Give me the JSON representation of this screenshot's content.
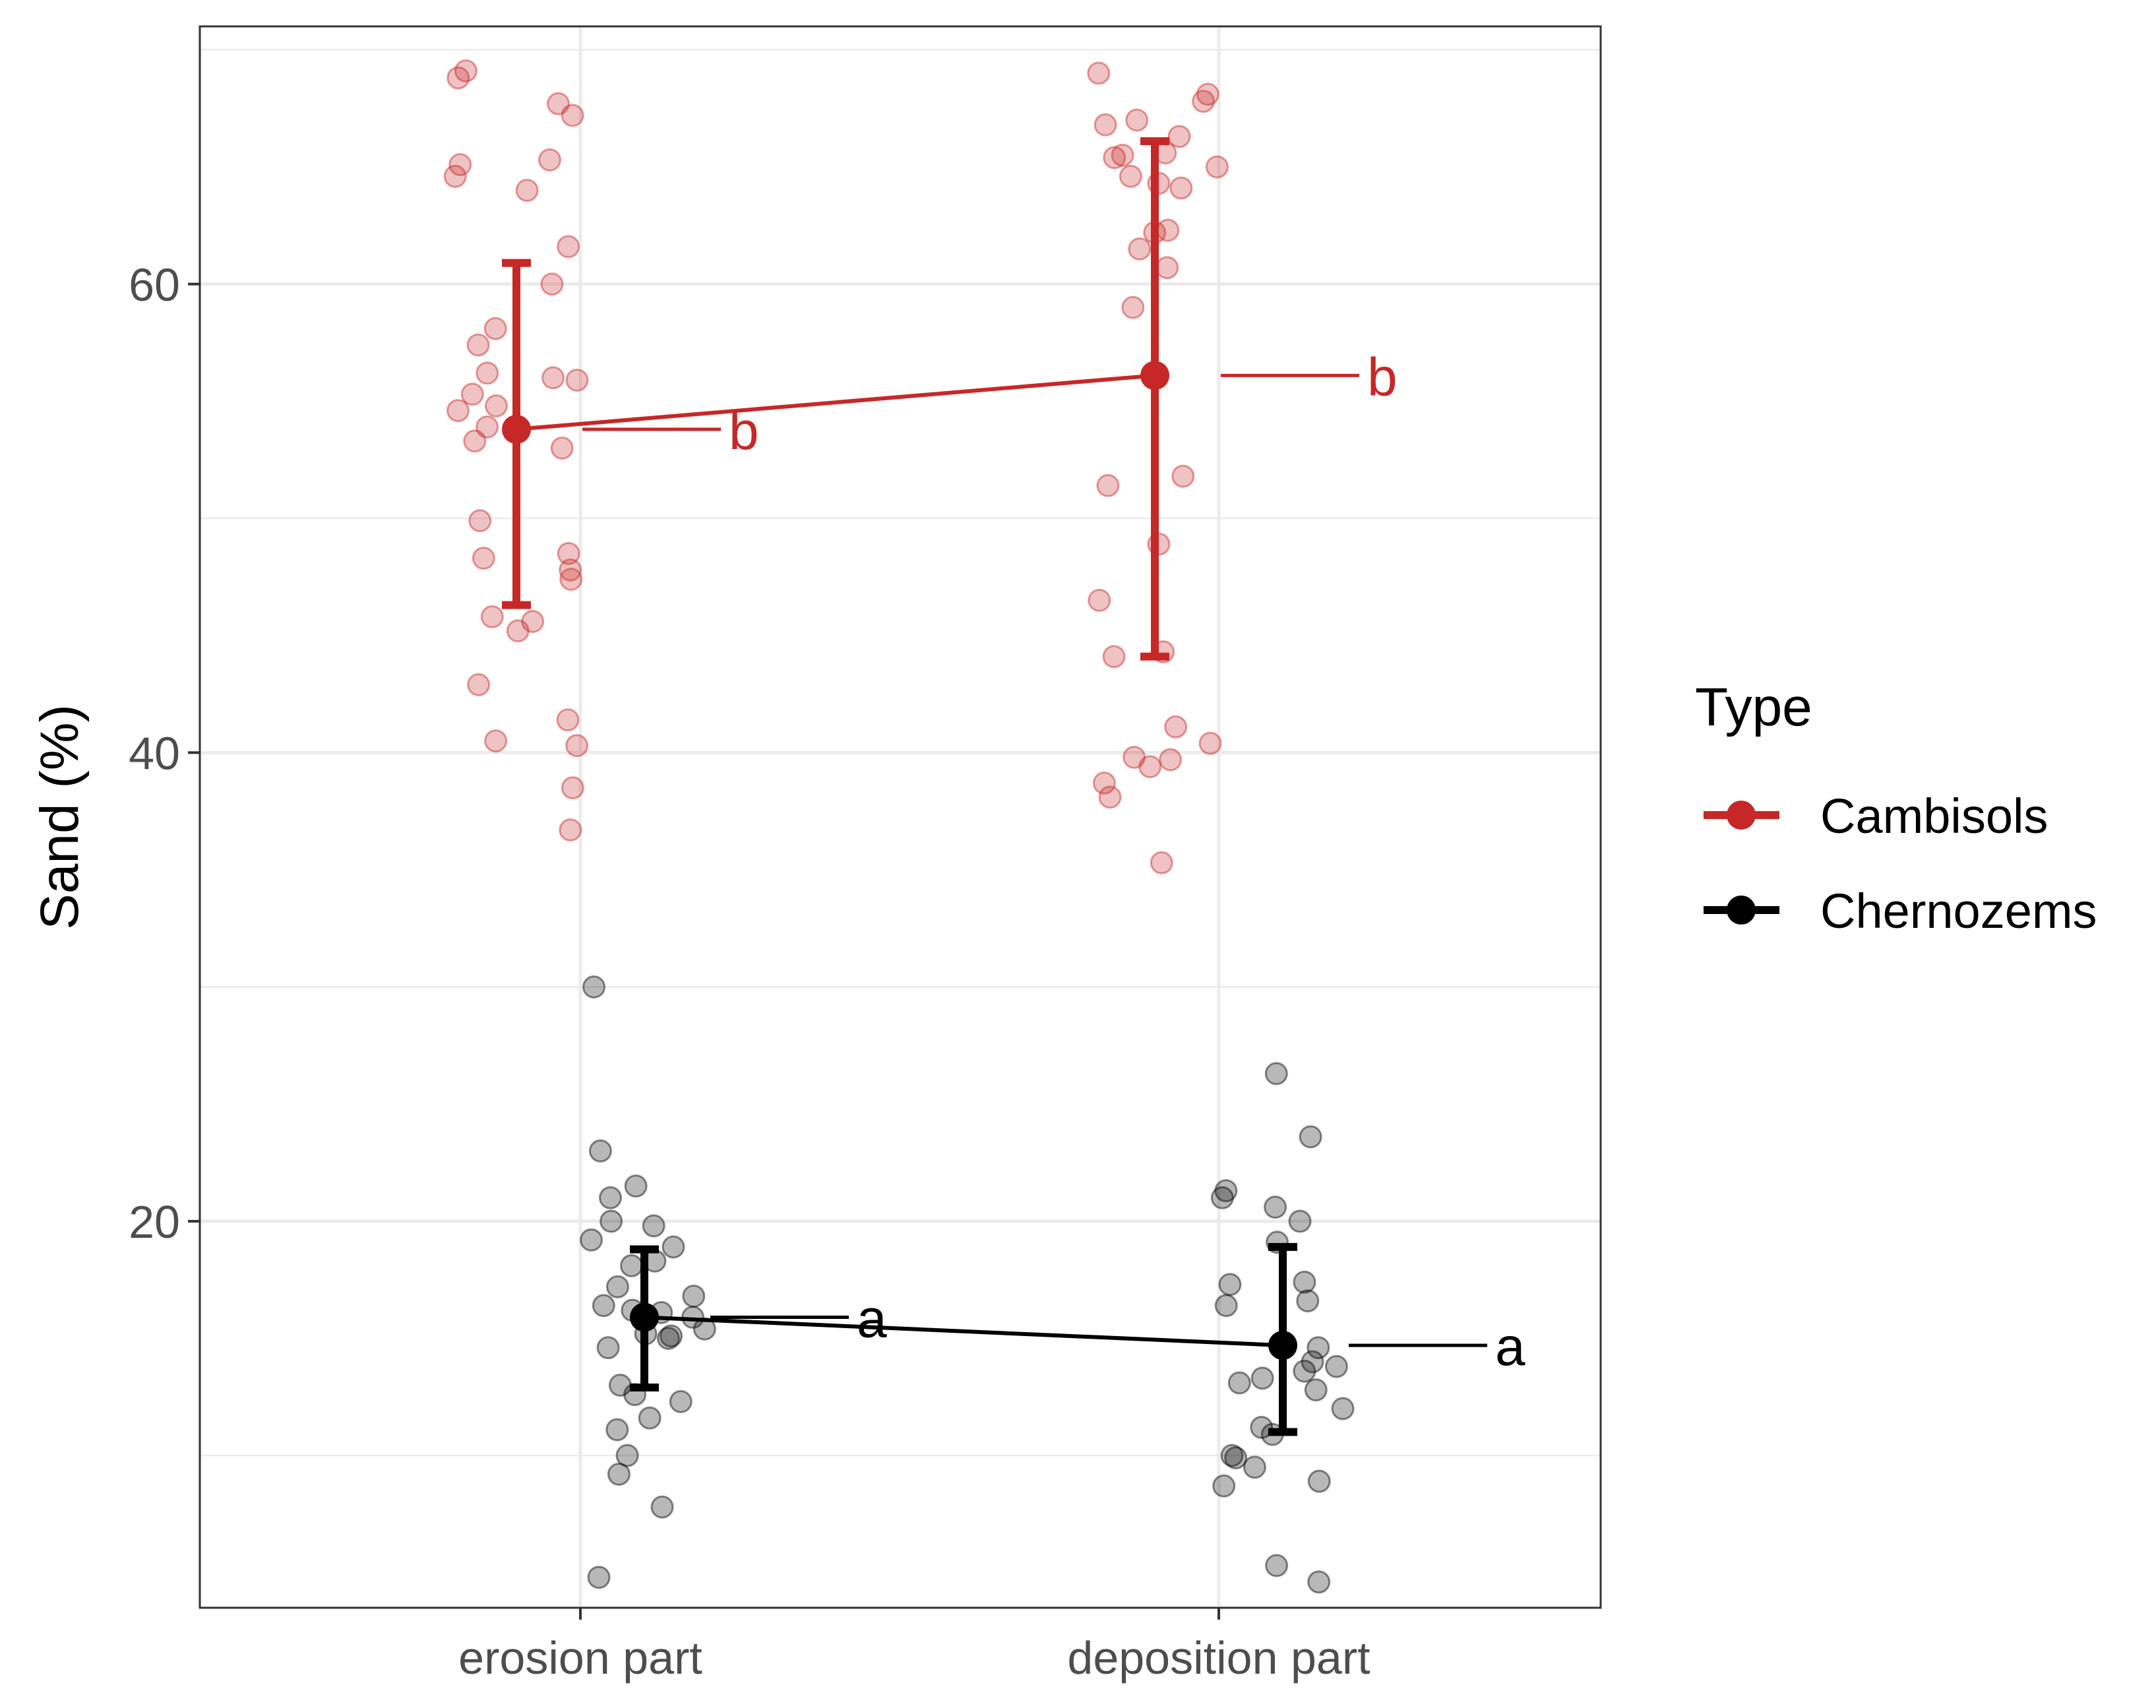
{
  "chart_data": {
    "type": "scatter",
    "title": "",
    "xlabel": "",
    "ylabel": "Sand (%)",
    "categories": [
      "erosion part",
      "deposition part"
    ],
    "ylim": [
      3.5,
      71
    ],
    "y_ticks": [
      20,
      40,
      60
    ],
    "grid": true,
    "legend": {
      "title": "Type",
      "position": "right"
    },
    "colors": {
      "Cambisols": "#c62828",
      "Chernozems": "#000000"
    },
    "series": [
      {
        "name": "Cambisols",
        "color": "#c62828",
        "means": [
          53.8,
          56.1
        ],
        "ci_low": [
          46.3,
          44.1
        ],
        "ci_high": [
          60.9,
          66.1
        ],
        "letters": [
          "b",
          "b"
        ],
        "points": [
          [
            0,
            69.1
          ],
          [
            0,
            67.7
          ],
          [
            0,
            67.2
          ],
          [
            0,
            68.8
          ],
          [
            0,
            64.6
          ],
          [
            0,
            65.1
          ],
          [
            0,
            65.3
          ],
          [
            0,
            64.0
          ],
          [
            0,
            61.6
          ],
          [
            0,
            60.0
          ],
          [
            0,
            58.1
          ],
          [
            0,
            57.4
          ],
          [
            0,
            56.2
          ],
          [
            0,
            56.0
          ],
          [
            0,
            55.9
          ],
          [
            0,
            55.3
          ],
          [
            0,
            54.8
          ],
          [
            0,
            54.6
          ],
          [
            0,
            53.9
          ],
          [
            0,
            53.3
          ],
          [
            0,
            53.0
          ],
          [
            0,
            49.9
          ],
          [
            0,
            48.5
          ],
          [
            0,
            48.3
          ],
          [
            0,
            47.8
          ],
          [
            0,
            47.4
          ],
          [
            0,
            45.8
          ],
          [
            0,
            45.6
          ],
          [
            0,
            45.2
          ],
          [
            0,
            42.9
          ],
          [
            0,
            41.4
          ],
          [
            0,
            40.5
          ],
          [
            0,
            40.3
          ],
          [
            0,
            38.5
          ],
          [
            0,
            36.7
          ],
          [
            1,
            69.0
          ],
          [
            1,
            68.1
          ],
          [
            1,
            67.8
          ],
          [
            1,
            67.0
          ],
          [
            1,
            66.8
          ],
          [
            1,
            66.3
          ],
          [
            1,
            65.6
          ],
          [
            1,
            65.5
          ],
          [
            1,
            65.4
          ],
          [
            1,
            65.0
          ],
          [
            1,
            64.6
          ],
          [
            1,
            64.3
          ],
          [
            1,
            64.1
          ],
          [
            1,
            62.3
          ],
          [
            1,
            62.2
          ],
          [
            1,
            61.5
          ],
          [
            1,
            60.7
          ],
          [
            1,
            59.0
          ],
          [
            1,
            51.8
          ],
          [
            1,
            51.4
          ],
          [
            1,
            48.9
          ],
          [
            1,
            46.5
          ],
          [
            1,
            44.3
          ],
          [
            1,
            44.1
          ],
          [
            1,
            41.1
          ],
          [
            1,
            40.4
          ],
          [
            1,
            39.8
          ],
          [
            1,
            39.7
          ],
          [
            1,
            39.4
          ],
          [
            1,
            38.7
          ],
          [
            1,
            38.1
          ],
          [
            1,
            35.3
          ]
        ]
      },
      {
        "name": "Chernozems",
        "color": "#000000",
        "means": [
          15.9,
          14.7
        ],
        "ci_low": [
          12.9,
          11.0
        ],
        "ci_high": [
          18.8,
          18.9
        ],
        "letters": [
          "a",
          "a"
        ],
        "points": [
          [
            0,
            30.0
          ],
          [
            0,
            23.0
          ],
          [
            0,
            21.5
          ],
          [
            0,
            21.0
          ],
          [
            0,
            20.0
          ],
          [
            0,
            19.8
          ],
          [
            0,
            19.2
          ],
          [
            0,
            18.9
          ],
          [
            0,
            18.3
          ],
          [
            0,
            18.1
          ],
          [
            0,
            17.2
          ],
          [
            0,
            16.8
          ],
          [
            0,
            16.4
          ],
          [
            0,
            16.2
          ],
          [
            0,
            16.1
          ],
          [
            0,
            15.9
          ],
          [
            0,
            15.4
          ],
          [
            0,
            15.2
          ],
          [
            0,
            15.1
          ],
          [
            0,
            15.0
          ],
          [
            0,
            14.6
          ],
          [
            0,
            13.0
          ],
          [
            0,
            12.6
          ],
          [
            0,
            12.3
          ],
          [
            0,
            11.6
          ],
          [
            0,
            11.1
          ],
          [
            0,
            10.0
          ],
          [
            0,
            9.2
          ],
          [
            0,
            7.8
          ],
          [
            0,
            4.8
          ],
          [
            1,
            26.3
          ],
          [
            1,
            23.6
          ],
          [
            1,
            21.3
          ],
          [
            1,
            21.0
          ],
          [
            1,
            20.6
          ],
          [
            1,
            20.0
          ],
          [
            1,
            19.1
          ],
          [
            1,
            17.4
          ],
          [
            1,
            17.3
          ],
          [
            1,
            16.6
          ],
          [
            1,
            16.4
          ],
          [
            1,
            14.6
          ],
          [
            1,
            14.0
          ],
          [
            1,
            13.8
          ],
          [
            1,
            13.6
          ],
          [
            1,
            13.3
          ],
          [
            1,
            13.1
          ],
          [
            1,
            12.8
          ],
          [
            1,
            12.0
          ],
          [
            1,
            11.2
          ],
          [
            1,
            10.9
          ],
          [
            1,
            10.0
          ],
          [
            1,
            9.9
          ],
          [
            1,
            9.5
          ],
          [
            1,
            8.9
          ],
          [
            1,
            8.7
          ],
          [
            1,
            5.3
          ],
          [
            1,
            4.6
          ]
        ]
      }
    ]
  }
}
